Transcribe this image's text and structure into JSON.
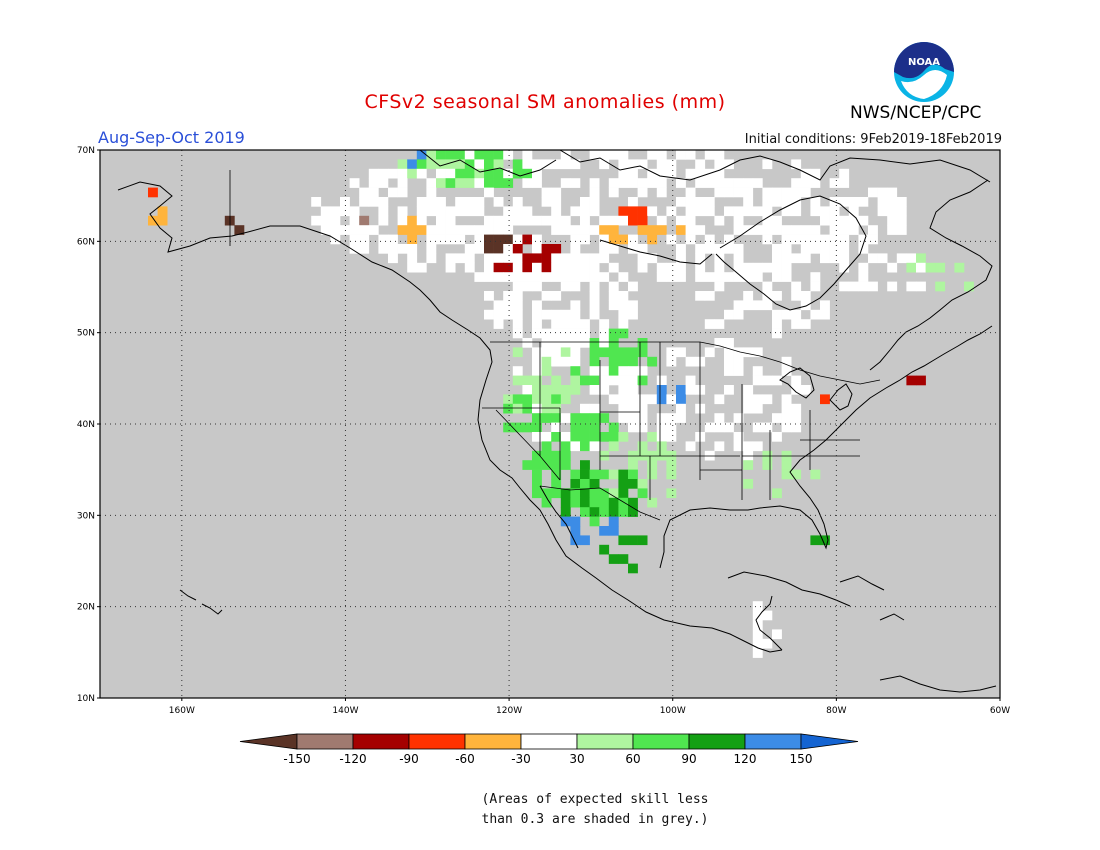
{
  "header": {
    "title": "CFSv2 seasonal SM anomalies (mm)",
    "season": "Aug-Sep-Oct 2019",
    "initial_conditions": "Initial conditions: 9Feb2019-18Feb2019",
    "agency": "NWS/NCEP/CPC",
    "logo_text": "NOAA"
  },
  "map": {
    "extent": {
      "lon_min": -170,
      "lon_max": -60,
      "lat_min": 10,
      "lat_max": 70
    },
    "lat_labels": [
      "70N",
      "60N",
      "50N",
      "40N",
      "30N",
      "20N",
      "10N"
    ],
    "lon_labels": [
      "160W",
      "140W",
      "120W",
      "100W",
      "80W",
      "60W"
    ],
    "grid_style": "dotted",
    "no_skill_color": "#c8c8c8"
  },
  "colorbar": {
    "tick_labels": [
      "-150",
      "-120",
      "-90",
      "-60",
      "-30",
      "30",
      "60",
      "90",
      "120",
      "150"
    ],
    "colors": [
      "#5a3326",
      "#a07a70",
      "#a50000",
      "#ff3200",
      "#ffb43c",
      "#ffffff",
      "#aff5a0",
      "#50e650",
      "#14a014",
      "#3c8ce6",
      "#1464d2"
    ]
  },
  "caption": {
    "line1": "(Areas of expected skill less",
    "line2": "than 0.3 are shaded in grey.)"
  }
}
